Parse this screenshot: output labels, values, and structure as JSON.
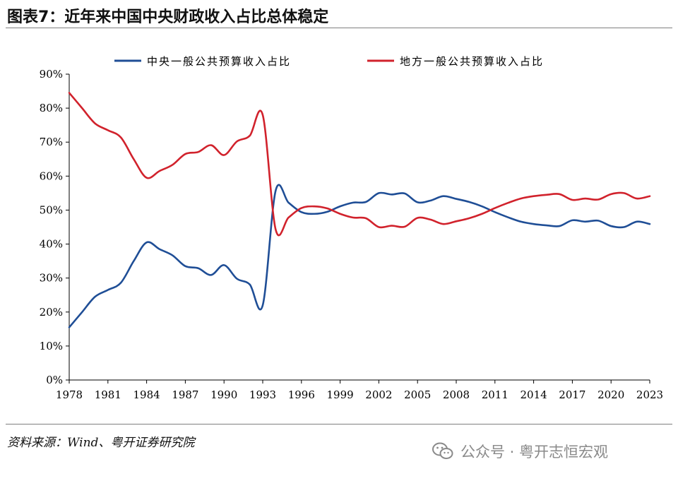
{
  "title": "图表7：近年来中国中央财政收入占比总体稳定",
  "source": "资料来源：Wind、粤开证券研究院",
  "watermark": {
    "text": "公众号 · 粤开志恒宏观",
    "icon": "wechat-icon",
    "color": "#8a8a8a"
  },
  "chart_data": {
    "type": "line",
    "title": "",
    "xlabel": "",
    "ylabel": "",
    "ylim": [
      0,
      90
    ],
    "yticks": [
      "0%",
      "10%",
      "20%",
      "30%",
      "40%",
      "50%",
      "60%",
      "70%",
      "80%",
      "90%"
    ],
    "xticks": [
      "1978",
      "1981",
      "1984",
      "1987",
      "1990",
      "1993",
      "1996",
      "1999",
      "2002",
      "2005",
      "2008",
      "2011",
      "2014",
      "2017",
      "2020",
      "2023"
    ],
    "legend_position": "top",
    "grid": false,
    "x": [
      1978,
      1979,
      1980,
      1981,
      1982,
      1983,
      1984,
      1985,
      1986,
      1987,
      1988,
      1989,
      1990,
      1991,
      1992,
      1993,
      1994,
      1995,
      1996,
      1997,
      1998,
      1999,
      2000,
      2001,
      2002,
      2003,
      2004,
      2005,
      2006,
      2007,
      2008,
      2009,
      2010,
      2011,
      2012,
      2013,
      2014,
      2015,
      2016,
      2017,
      2018,
      2019,
      2020,
      2021,
      2022,
      2023
    ],
    "series": [
      {
        "name": "中央一般公共预算收入占比",
        "color": "#1f4e96",
        "values": [
          15.5,
          20.0,
          24.5,
          26.5,
          28.6,
          35.0,
          40.5,
          38.5,
          36.7,
          33.5,
          32.9,
          30.9,
          33.8,
          29.8,
          28.1,
          22.0,
          55.7,
          52.2,
          49.4,
          48.9,
          49.5,
          51.1,
          52.2,
          52.4,
          55.0,
          54.6,
          54.9,
          52.3,
          52.8,
          54.1,
          53.3,
          52.4,
          51.1,
          49.4,
          47.9,
          46.6,
          45.9,
          45.5,
          45.3,
          47.0,
          46.6,
          46.9,
          45.3,
          45.0,
          46.6,
          45.9
        ]
      },
      {
        "name": "地方一般公共预算收入占比",
        "color": "#d1222c",
        "values": [
          84.5,
          80.0,
          75.5,
          73.5,
          71.4,
          65.0,
          59.5,
          61.5,
          63.3,
          66.5,
          67.1,
          69.1,
          66.2,
          70.2,
          71.9,
          78.0,
          44.3,
          47.8,
          50.6,
          51.1,
          50.5,
          48.9,
          47.8,
          47.6,
          45.0,
          45.4,
          45.1,
          47.7,
          47.2,
          45.9,
          46.7,
          47.6,
          48.9,
          50.6,
          52.1,
          53.4,
          54.1,
          54.5,
          54.7,
          53.0,
          53.4,
          53.1,
          54.7,
          55.0,
          53.4,
          54.1
        ]
      }
    ]
  }
}
